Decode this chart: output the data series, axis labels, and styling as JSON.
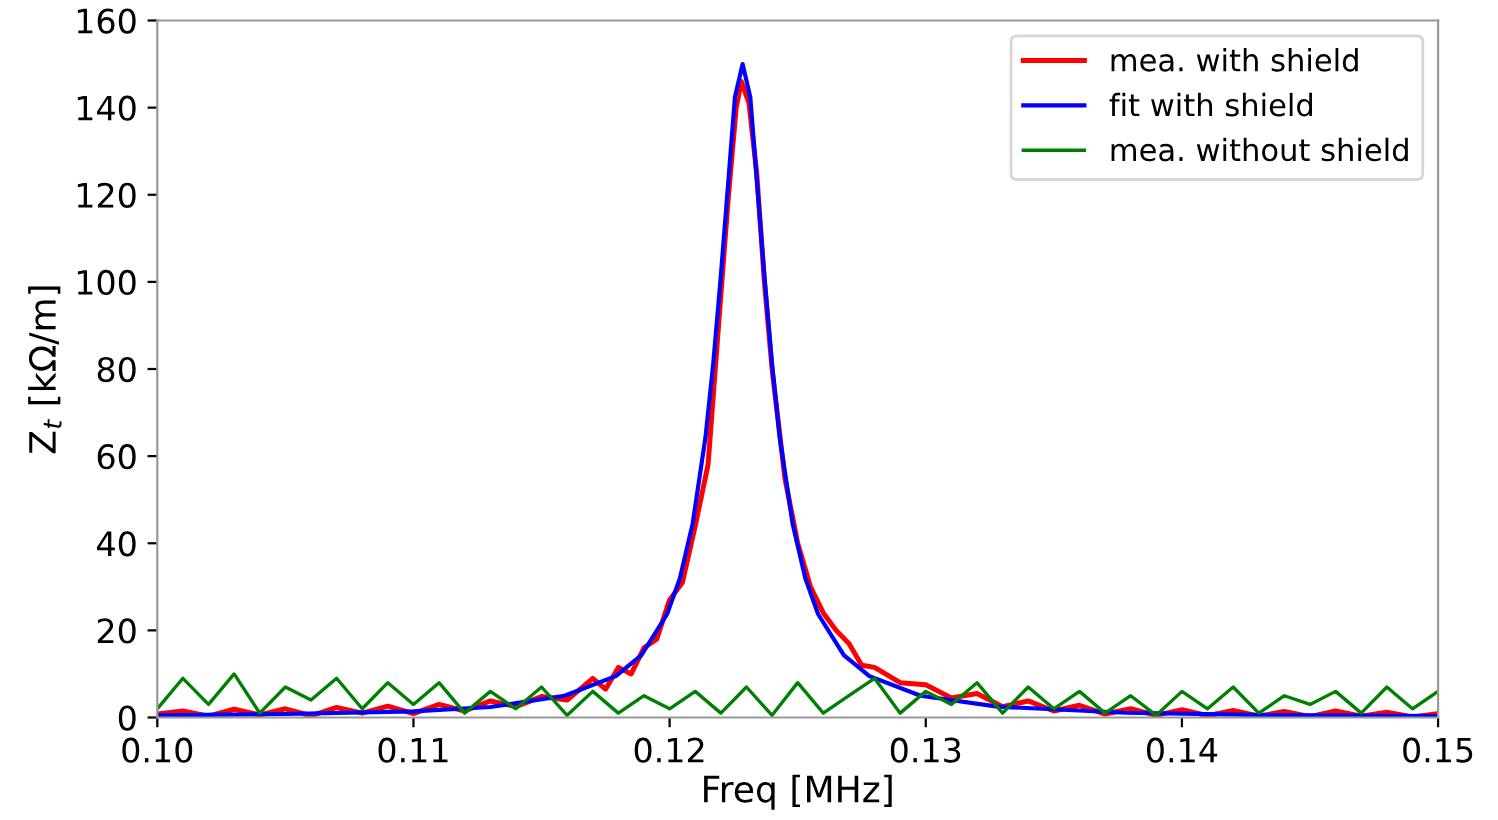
{
  "chart_data": {
    "type": "line",
    "xlabel": "Freq [MHz]",
    "ylabel": "Z$_{t}$ [kΩ/m]",
    "xlim": [
      0.1,
      0.15
    ],
    "ylim": [
      0,
      160
    ],
    "xticks": [
      {
        "value": 0.1,
        "label": "0.10"
      },
      {
        "value": 0.11,
        "label": "0.11"
      },
      {
        "value": 0.12,
        "label": "0.12"
      },
      {
        "value": 0.13,
        "label": "0.13"
      },
      {
        "value": 0.14,
        "label": "0.14"
      },
      {
        "value": 0.15,
        "label": "0.15"
      }
    ],
    "yticks": [
      0,
      20,
      40,
      60,
      80,
      100,
      120,
      140,
      160
    ],
    "grid": false,
    "legend": "top right",
    "marker": "none",
    "line_style": "solid",
    "series": [
      {
        "name": "mea. with shield",
        "color": "#ff0000",
        "x": [
          0.1,
          0.101,
          0.102,
          0.103,
          0.104,
          0.105,
          0.106,
          0.107,
          0.108,
          0.109,
          0.11,
          0.111,
          0.112,
          0.113,
          0.114,
          0.115,
          0.116,
          0.117,
          0.1175,
          0.118,
          0.1185,
          0.119,
          0.1195,
          0.12,
          0.1205,
          0.121,
          0.1215,
          0.122,
          0.1223,
          0.1226,
          0.1228,
          0.1231,
          0.1234,
          0.1237,
          0.124,
          0.1245,
          0.125,
          0.1255,
          0.126,
          0.1265,
          0.127,
          0.1275,
          0.128,
          0.129,
          0.13,
          0.131,
          0.132,
          0.133,
          0.134,
          0.135,
          0.136,
          0.137,
          0.138,
          0.139,
          0.14,
          0.141,
          0.142,
          0.143,
          0.144,
          0.145,
          0.146,
          0.147,
          0.148,
          0.149,
          0.15
        ],
        "values": [
          0.8,
          1.5,
          0.3,
          1.9,
          0.6,
          2.0,
          0.4,
          2.3,
          1.0,
          2.6,
          0.9,
          3.0,
          1.5,
          3.8,
          2.5,
          4.8,
          4.0,
          9.0,
          6.5,
          11.5,
          10.0,
          16.0,
          18.0,
          27.0,
          31.0,
          44.0,
          58.0,
          97.0,
          120.0,
          140.0,
          146.0,
          141.0,
          125.0,
          100.0,
          80.0,
          55.0,
          40.0,
          30.0,
          24.0,
          20.0,
          17.0,
          12.0,
          11.5,
          8.0,
          7.5,
          4.5,
          5.5,
          2.5,
          3.8,
          1.5,
          2.8,
          0.8,
          2.0,
          0.5,
          1.8,
          0.4,
          1.6,
          0.3,
          1.4,
          0.2,
          1.5,
          0.3,
          1.2,
          0.1,
          0.9
        ]
      },
      {
        "name": "fit with shield",
        "color": "#0000ff",
        "x": [
          0.1,
          0.105,
          0.11,
          0.113,
          0.1159,
          0.1179,
          0.1189,
          0.1199,
          0.1204,
          0.1209,
          0.1214,
          0.1217,
          0.122,
          0.1223,
          0.12255,
          0.12285,
          0.12315,
          0.1234,
          0.1237,
          0.124,
          0.1243,
          0.1248,
          0.1253,
          0.1258,
          0.1268,
          0.1278,
          0.1298,
          0.1328,
          0.1378,
          0.1428,
          0.15
        ],
        "values": [
          0.5,
          0.8,
          1.4,
          2.4,
          5.0,
          9.5,
          14.3,
          23.7,
          31.9,
          44.5,
          64.3,
          81,
          101.4,
          123.7,
          142.4,
          150,
          142.4,
          123.7,
          101.4,
          81,
          64.3,
          44.5,
          31.9,
          23.7,
          14.3,
          9.5,
          5.0,
          2.5,
          1.1,
          0.6,
          0.3
        ]
      },
      {
        "name": "mea. without shield",
        "color": "#008000",
        "x": [
          0.1,
          0.101,
          0.102,
          0.103,
          0.104,
          0.105,
          0.106,
          0.107,
          0.108,
          0.109,
          0.11,
          0.111,
          0.112,
          0.113,
          0.114,
          0.115,
          0.116,
          0.117,
          0.118,
          0.119,
          0.12,
          0.121,
          0.122,
          0.123,
          0.124,
          0.125,
          0.126,
          0.127,
          0.128,
          0.129,
          0.13,
          0.131,
          0.132,
          0.133,
          0.134,
          0.135,
          0.136,
          0.137,
          0.138,
          0.139,
          0.14,
          0.141,
          0.142,
          0.143,
          0.144,
          0.145,
          0.146,
          0.147,
          0.148,
          0.149,
          0.15
        ],
        "values": [
          2,
          9,
          3,
          10,
          1,
          7,
          4,
          9,
          2,
          8,
          3,
          8,
          1,
          6,
          2,
          7,
          0.5,
          6,
          1,
          5,
          2,
          6,
          1,
          7,
          0.5,
          8,
          1,
          5,
          9,
          1,
          6,
          3,
          8,
          1,
          7,
          2,
          6,
          1,
          5,
          0.5,
          6,
          2,
          7,
          1,
          5,
          3,
          6,
          1,
          7,
          2,
          6
        ]
      }
    ]
  }
}
